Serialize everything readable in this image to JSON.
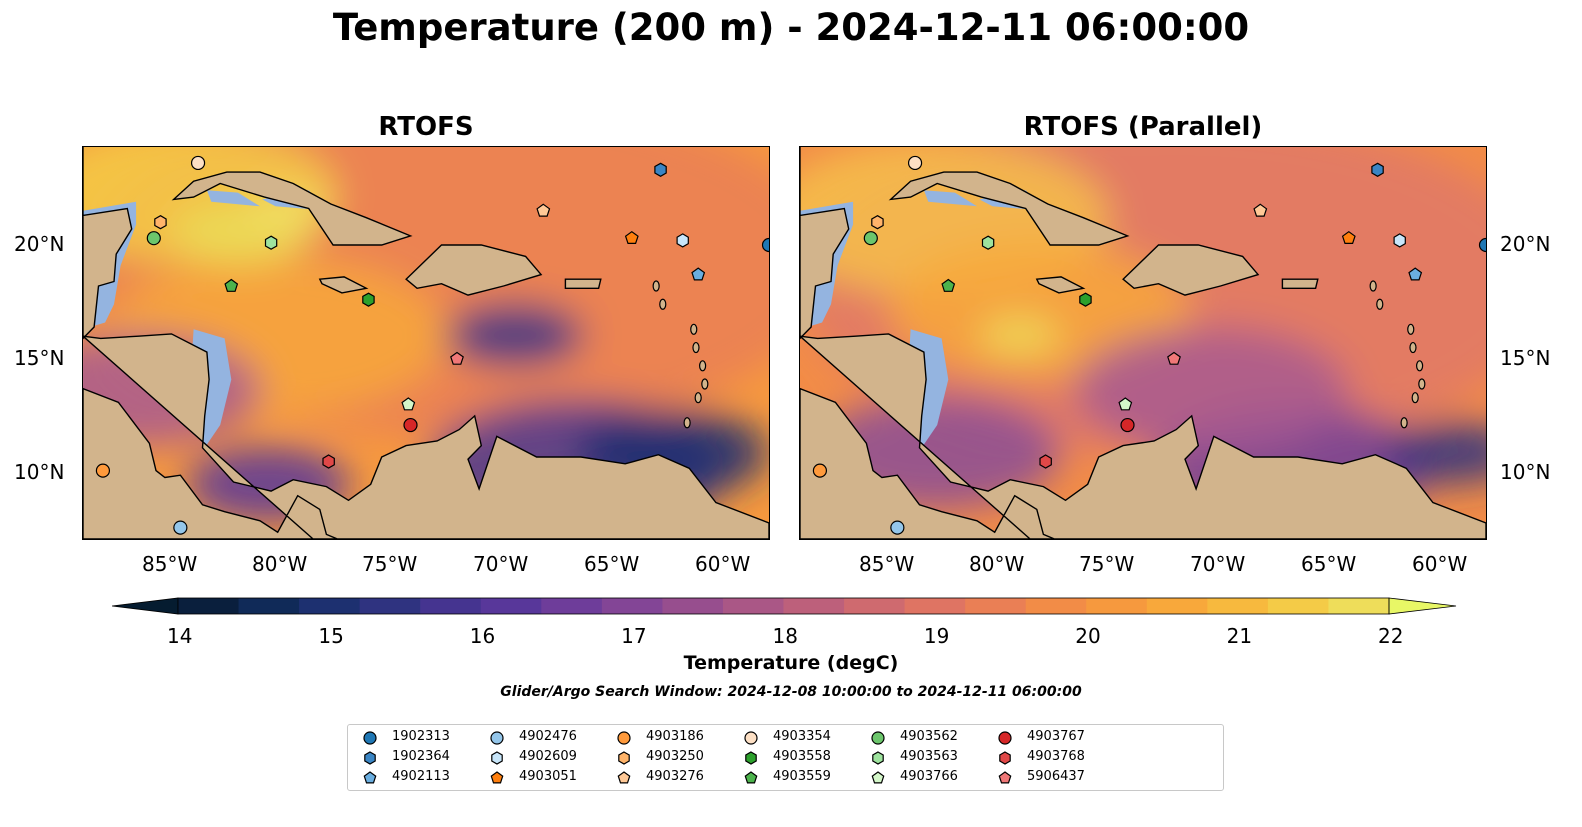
{
  "title": "Temperature (200 m) - 2024-12-11 06:00:00",
  "panels": [
    {
      "title": "RTOFS"
    },
    {
      "title": "RTOFS (Parallel)"
    }
  ],
  "lon_labels": [
    "85°W",
    "80°W",
    "75°W",
    "70°W",
    "65°W",
    "60°W"
  ],
  "lat_labels": [
    "20°N",
    "15°N",
    "10°N"
  ],
  "colorbar": {
    "label": "Temperature (degC)",
    "ticks": [
      "14",
      "15",
      "16",
      "17",
      "18",
      "19",
      "20",
      "21",
      "22"
    ],
    "colors": [
      "#0a1f3d",
      "#102a58",
      "#1d3070",
      "#2f3380",
      "#453490",
      "#58379a",
      "#6e3d9a",
      "#834596",
      "#974e8e",
      "#aa5786",
      "#bd607b",
      "#cf6a6f",
      "#df7463",
      "#ea7f55",
      "#f28c47",
      "#f6993e",
      "#f8a83b",
      "#f7b93e",
      "#f4cb47",
      "#eedd5a"
    ],
    "extend_low": "#051c30",
    "extend_high": "#e8f766"
  },
  "search_window": "Glider/Argo Search Window: 2024-12-08 10:00:00 to 2024-12-11 06:00:00",
  "legend": [
    {
      "id": "1902313",
      "marker": "circle",
      "color": "#1f77b4"
    },
    {
      "id": "1902364",
      "marker": "hexagon",
      "color": "#3a85c4"
    },
    {
      "id": "4902113",
      "marker": "pentagon",
      "color": "#6aaee0"
    },
    {
      "id": "4902476",
      "marker": "circle",
      "color": "#94c6ea"
    },
    {
      "id": "4902609",
      "marker": "hexagon",
      "color": "#c8e6fa"
    },
    {
      "id": "4903051",
      "marker": "pentagon",
      "color": "#ff7f0e"
    },
    {
      "id": "4903186",
      "marker": "circle",
      "color": "#ff9a3c"
    },
    {
      "id": "4903250",
      "marker": "hexagon",
      "color": "#ffb46a"
    },
    {
      "id": "4903276",
      "marker": "pentagon",
      "color": "#ffc997"
    },
    {
      "id": "4903354",
      "marker": "circle",
      "color": "#fde0c5"
    },
    {
      "id": "4903558",
      "marker": "hexagon",
      "color": "#2ca02c"
    },
    {
      "id": "4903559",
      "marker": "pentagon",
      "color": "#4cb34c"
    },
    {
      "id": "4903562",
      "marker": "circle",
      "color": "#6cc66c"
    },
    {
      "id": "4903563",
      "marker": "hexagon",
      "color": "#9ee39e"
    },
    {
      "id": "4903766",
      "marker": "pentagon",
      "color": "#d4f7c9"
    },
    {
      "id": "4903767",
      "marker": "circle",
      "color": "#d62728"
    },
    {
      "id": "4903768",
      "marker": "hexagon",
      "color": "#e04848"
    },
    {
      "id": "5906437",
      "marker": "pentagon",
      "color": "#f07878"
    }
  ],
  "floats": [
    {
      "id": "4903354",
      "lon": -83.8,
      "lat": 23.5
    },
    {
      "id": "4903250",
      "lon": -85.5,
      "lat": 20.9
    },
    {
      "id": "4903562",
      "lon": -85.8,
      "lat": 20.2
    },
    {
      "id": "4903563",
      "lon": -80.5,
      "lat": 20.0
    },
    {
      "id": "4903559",
      "lon": -82.3,
      "lat": 18.1
    },
    {
      "id": "4903558",
      "lon": -76.1,
      "lat": 17.5
    },
    {
      "id": "1902364",
      "lon": -62.9,
      "lat": 23.2
    },
    {
      "id": "4903276",
      "lon": -68.2,
      "lat": 21.4
    },
    {
      "id": "4903051",
      "lon": -64.2,
      "lat": 20.2
    },
    {
      "id": "4902609",
      "lon": -61.9,
      "lat": 20.1
    },
    {
      "id": "1902313",
      "lon": -58.0,
      "lat": 19.9
    },
    {
      "id": "4902113",
      "lon": -61.2,
      "lat": 18.6
    },
    {
      "id": "5906437",
      "lon": -72.1,
      "lat": 14.9
    },
    {
      "id": "4903766",
      "lon": -74.3,
      "lat": 12.9
    },
    {
      "id": "4903767",
      "lon": -74.2,
      "lat": 12.0
    },
    {
      "id": "4903768",
      "lon": -77.9,
      "lat": 10.4
    },
    {
      "id": "4903186",
      "lon": -88.1,
      "lat": 10.0
    },
    {
      "id": "4902476",
      "lon": -84.6,
      "lat": 7.5
    }
  ]
}
